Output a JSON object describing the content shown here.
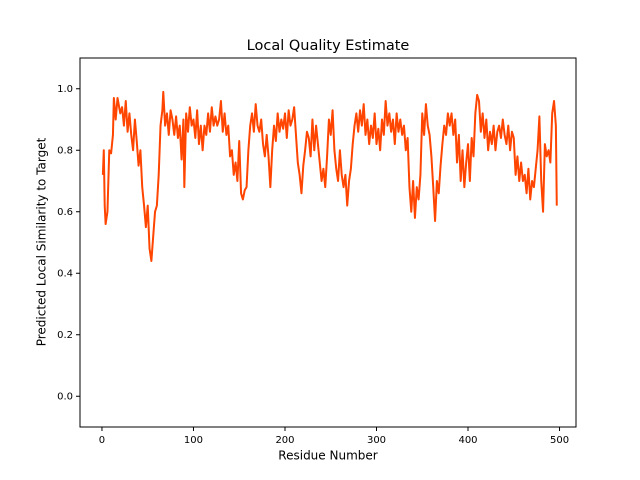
{
  "chart_data": {
    "type": "line",
    "title": "Local Quality Estimate",
    "xlabel": "Residue Number",
    "ylabel": "Predicted Local Similarity to Target",
    "xlim": [
      -24,
      518
    ],
    "ylim": [
      -0.1,
      1.1
    ],
    "xticks": [
      0,
      100,
      200,
      300,
      400,
      500
    ],
    "yticks": [
      {
        "value": 0,
        "label": "0.0"
      },
      0.2,
      0.4,
      0.6,
      0.8,
      {
        "value": 1,
        "label": "1.0"
      }
    ],
    "grid": false,
    "series": [
      {
        "color": "#ff4500",
        "x": [
          1,
          2,
          3,
          4,
          6,
          8,
          10,
          12,
          13,
          15,
          17,
          20,
          22,
          24,
          26,
          28,
          30,
          32,
          34,
          36,
          38,
          40,
          42,
          44,
          46,
          48,
          50,
          52,
          54,
          56,
          58,
          60,
          62,
          64,
          66,
          67,
          69,
          71,
          73,
          75,
          77,
          79,
          81,
          83,
          85,
          87,
          89,
          90,
          92,
          94,
          96,
          98,
          100,
          102,
          104,
          106,
          108,
          110,
          112,
          114,
          116,
          118,
          120,
          122,
          124,
          126,
          128,
          130,
          132,
          134,
          136,
          138,
          140,
          142,
          144,
          146,
          148,
          150,
          152,
          154,
          156,
          158,
          160,
          162,
          164,
          166,
          168,
          170,
          172,
          174,
          176,
          178,
          180,
          182,
          184,
          186,
          188,
          190,
          192,
          194,
          196,
          198,
          200,
          202,
          204,
          206,
          208,
          210,
          212,
          214,
          216,
          218,
          220,
          222,
          224,
          226,
          228,
          230,
          232,
          234,
          236,
          238,
          240,
          242,
          244,
          246,
          248,
          250,
          252,
          254,
          256,
          258,
          260,
          262,
          264,
          266,
          268,
          270,
          272,
          274,
          276,
          278,
          280,
          282,
          284,
          286,
          288,
          290,
          292,
          294,
          296,
          298,
          300,
          302,
          304,
          306,
          308,
          310,
          312,
          314,
          316,
          318,
          320,
          322,
          324,
          326,
          328,
          330,
          332,
          334,
          336,
          338,
          340,
          342,
          344,
          346,
          348,
          350,
          352,
          354,
          356,
          358,
          360,
          362,
          364,
          366,
          368,
          370,
          372,
          374,
          376,
          378,
          380,
          382,
          384,
          386,
          388,
          390,
          392,
          394,
          396,
          398,
          400,
          402,
          404,
          406,
          408,
          410,
          412,
          414,
          416,
          418,
          420,
          422,
          424,
          426,
          428,
          430,
          432,
          434,
          436,
          438,
          440,
          442,
          444,
          446,
          448,
          450,
          452,
          454,
          456,
          458,
          460,
          462,
          464,
          466,
          468,
          470,
          472,
          474,
          476,
          478,
          480,
          482,
          484,
          486,
          488,
          490,
          492,
          494,
          496,
          497
        ],
        "values": [
          0.72,
          0.8,
          0.62,
          0.56,
          0.6,
          0.8,
          0.79,
          0.85,
          0.97,
          0.9,
          0.97,
          0.92,
          0.94,
          0.88,
          0.96,
          0.86,
          0.92,
          0.85,
          0.8,
          0.9,
          0.83,
          0.75,
          0.8,
          0.68,
          0.62,
          0.55,
          0.62,
          0.48,
          0.44,
          0.52,
          0.6,
          0.62,
          0.72,
          0.88,
          0.93,
          0.99,
          0.88,
          0.92,
          0.85,
          0.93,
          0.9,
          0.85,
          0.91,
          0.84,
          0.88,
          0.77,
          0.9,
          0.68,
          0.92,
          0.86,
          0.94,
          0.88,
          0.9,
          0.84,
          0.93,
          0.82,
          0.88,
          0.8,
          0.88,
          0.85,
          0.92,
          0.86,
          0.94,
          0.88,
          0.91,
          0.88,
          0.9,
          0.96,
          0.86,
          0.92,
          0.85,
          0.88,
          0.78,
          0.8,
          0.72,
          0.76,
          0.7,
          0.83,
          0.66,
          0.64,
          0.67,
          0.68,
          0.8,
          0.88,
          0.92,
          0.86,
          0.95,
          0.88,
          0.86,
          0.9,
          0.82,
          0.78,
          0.85,
          0.78,
          0.68,
          0.8,
          0.88,
          0.83,
          0.92,
          0.86,
          0.9,
          0.87,
          0.92,
          0.84,
          0.93,
          0.88,
          0.9,
          0.94,
          0.85,
          0.76,
          0.72,
          0.66,
          0.75,
          0.8,
          0.86,
          0.84,
          0.78,
          0.9,
          0.8,
          0.88,
          0.82,
          0.76,
          0.7,
          0.74,
          0.68,
          0.78,
          0.9,
          0.85,
          0.93,
          0.8,
          0.74,
          0.7,
          0.8,
          0.72,
          0.68,
          0.72,
          0.62,
          0.7,
          0.74,
          0.82,
          0.88,
          0.92,
          0.86,
          0.93,
          0.88,
          0.95,
          0.85,
          0.9,
          0.82,
          0.88,
          0.84,
          0.92,
          0.82,
          0.87,
          0.8,
          0.9,
          0.85,
          0.96,
          0.88,
          0.92,
          0.86,
          0.9,
          0.82,
          0.92,
          0.86,
          0.9,
          0.85,
          0.88,
          0.8,
          0.84,
          0.68,
          0.6,
          0.7,
          0.58,
          0.68,
          0.64,
          0.72,
          0.92,
          0.85,
          0.95,
          0.88,
          0.85,
          0.78,
          0.68,
          0.57,
          0.7,
          0.66,
          0.75,
          0.82,
          0.88,
          0.85,
          0.92,
          0.88,
          0.92,
          0.85,
          0.9,
          0.76,
          0.85,
          0.7,
          0.8,
          0.68,
          0.76,
          0.82,
          0.7,
          0.84,
          0.78,
          0.92,
          0.98,
          0.96,
          0.86,
          0.92,
          0.84,
          0.9,
          0.8,
          0.86,
          0.82,
          0.88,
          0.8,
          0.86,
          0.88,
          0.84,
          0.9,
          0.85,
          0.82,
          0.88,
          0.8,
          0.86,
          0.84,
          0.72,
          0.78,
          0.7,
          0.76,
          0.7,
          0.72,
          0.66,
          0.74,
          0.64,
          0.7,
          0.68,
          0.74,
          0.8,
          0.91,
          0.7,
          0.6,
          0.82,
          0.78,
          0.8,
          0.76,
          0.92,
          0.96,
          0.88,
          0.62
        ]
      }
    ]
  }
}
